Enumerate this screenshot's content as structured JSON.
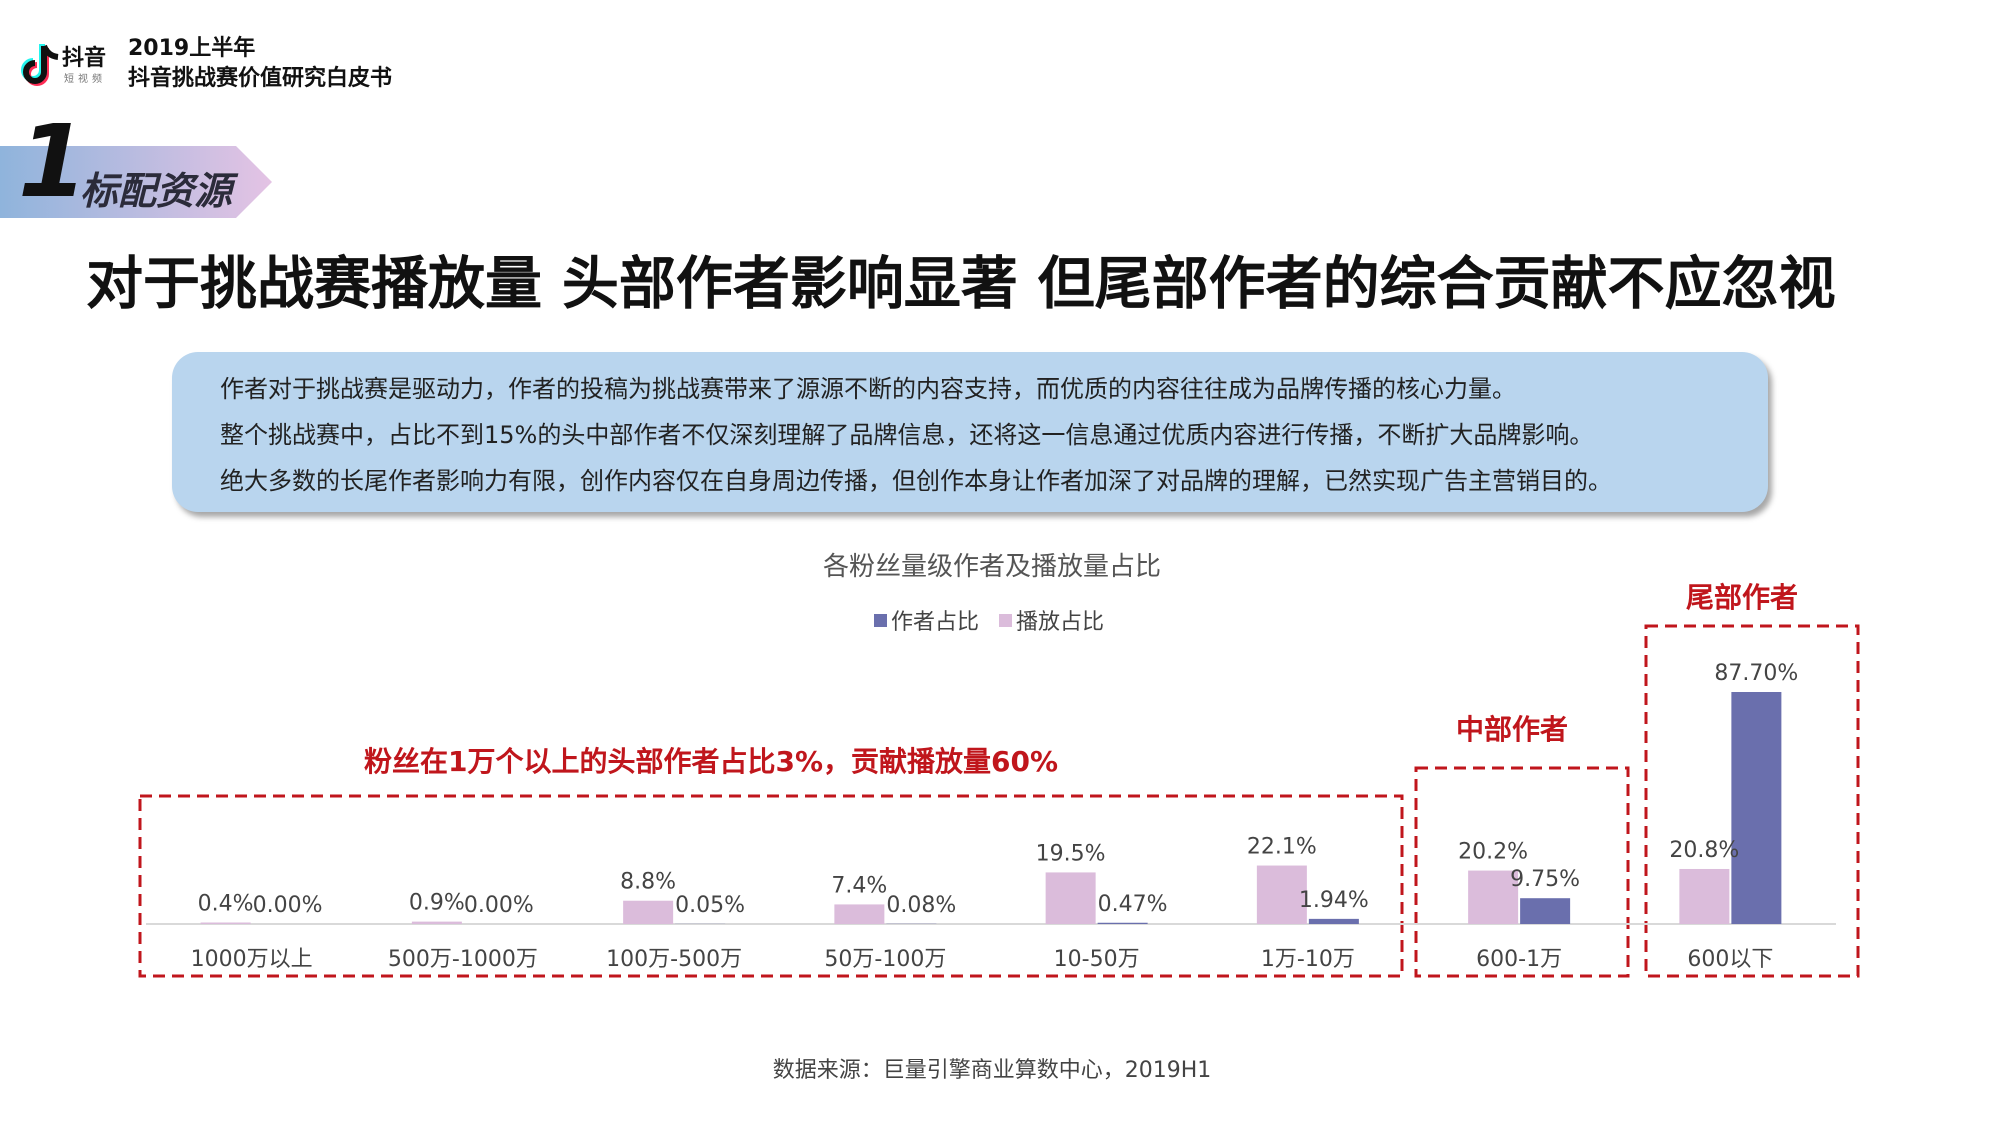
{
  "header": {
    "logo_text": "抖音",
    "logo_sub": "短视频",
    "year": "2019上半年",
    "title": "抖音挑战赛价值研究白皮书"
  },
  "section": {
    "number": "1",
    "label": "标配资源"
  },
  "main_title": "对于挑战赛播放量 头部作者影响显著 但尾部作者的综合贡献不应忽视",
  "summary": {
    "lines": [
      "作者对于挑战赛是驱动力，作者的投稿为挑战赛带来了源源不断的内容支持，而优质的内容往往成为品牌传播的核心力量。",
      "整个挑战赛中，占比不到15%的头中部作者不仅深刻理解了品牌信息，还将这一信息通过优质内容进行传播，不断扩大品牌影响。",
      "绝大多数的长尾作者影响力有限，创作内容仅在自身周边传播，但创作本身让作者加深了对品牌的理解，已然实现广告主营销目的。"
    ]
  },
  "annotations": {
    "head": "粉丝在1万个以上的头部作者占比3%，贡献播放量60%",
    "middle": "中部作者",
    "tail": "尾部作者"
  },
  "source": "数据来源：巨量引擎商业算数中心，2019H1",
  "colors": {
    "author_share": "#6a6fad",
    "play_share": "#dbbcdb",
    "annotation": "#c0161c",
    "summary_bg": "#b9d5ee"
  },
  "chart_data": {
    "type": "bar",
    "title": "各粉丝量级作者及播放量占比",
    "legend_position": "top",
    "categories": [
      "1000万以上",
      "500万-1000万",
      "100万-500万",
      "50万-100万",
      "10-50万",
      "1万-10万",
      "600-1万",
      "600以下"
    ],
    "series": [
      {
        "name": "作者占比",
        "values": [
          0.0,
          0.0,
          0.05,
          0.08,
          0.47,
          1.94,
          9.75,
          87.7
        ],
        "labels": [
          "0.00%",
          "0.00%",
          "0.05%",
          "0.08%",
          "0.47%",
          "1.94%",
          "9.75%",
          "87.70%"
        ]
      },
      {
        "name": "播放占比",
        "values": [
          0.4,
          0.9,
          8.8,
          7.4,
          19.5,
          22.1,
          20.2,
          20.8
        ],
        "labels": [
          "0.4%",
          "0.9%",
          "8.8%",
          "7.4%",
          "19.5%",
          "22.1%",
          "20.2%",
          "20.8%"
        ]
      }
    ],
    "ylim": [
      0,
      90
    ]
  }
}
